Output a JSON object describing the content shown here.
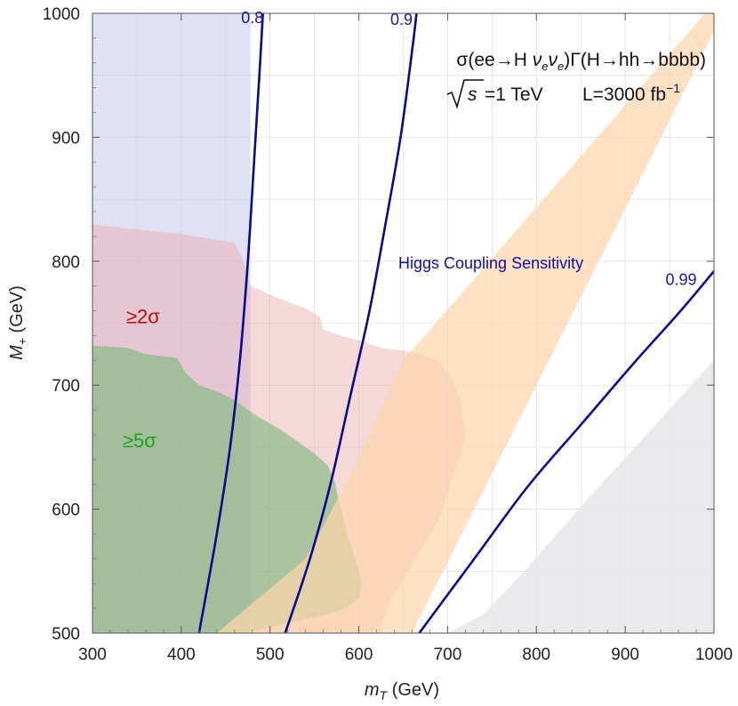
{
  "chart_data": {
    "type": "area",
    "title": "σ(ee→H νeνe)Γ(H→hh→bbbb)",
    "subtitle": "√s=1 TeV   L=3000 fb⁻¹",
    "title_parts": {
      "line1": [
        "σ(ee→H ",
        "ν",
        "e",
        "ν",
        "e",
        ")Γ(H→hh→bbbb)"
      ],
      "sqrt_s": "s",
      "energy": "=1 TeV",
      "lumi": "L=3000 fb",
      "lumi_exp": "−1"
    },
    "xlabel": "m_T (GeV)",
    "xlabel_parts": {
      "main": "m",
      "sub": "T",
      "unit": " (GeV)"
    },
    "ylabel": "M+ (GeV)",
    "ylabel_parts": {
      "main": "M",
      "sub": "+",
      "unit": " (GeV)"
    },
    "xlim": [
      300,
      1000
    ],
    "ylim": [
      500,
      1000
    ],
    "xticks": [
      300,
      400,
      500,
      600,
      700,
      800,
      900,
      1000
    ],
    "yticks": [
      500,
      600,
      700,
      800,
      900,
      1000
    ],
    "grid": true,
    "regions": [
      {
        "name": "low-mT-region",
        "color": "#c8c8ee",
        "opacity": 0.55,
        "points": [
          [
            300,
            1000
          ],
          [
            478,
            1000
          ],
          [
            478,
            500
          ],
          [
            300,
            500
          ]
        ]
      },
      {
        "name": "2-sigma-region",
        "color": "#e8a8a8",
        "opacity": 0.45,
        "label": "≥2σ",
        "label_color": "#b01010",
        "label_pos": [
          338,
          750
        ],
        "points": [
          [
            300,
            830
          ],
          [
            320,
            828
          ],
          [
            400,
            822
          ],
          [
            460,
            815
          ],
          [
            470,
            800
          ],
          [
            478,
            780
          ],
          [
            510,
            770
          ],
          [
            540,
            762
          ],
          [
            556,
            755
          ],
          [
            560,
            745
          ],
          [
            580,
            740
          ],
          [
            605,
            735
          ],
          [
            625,
            730
          ],
          [
            650,
            728
          ],
          [
            670,
            725
          ],
          [
            690,
            720
          ],
          [
            705,
            705
          ],
          [
            714,
            690
          ],
          [
            720,
            660
          ],
          [
            714,
            640
          ],
          [
            705,
            625
          ],
          [
            695,
            600
          ],
          [
            685,
            585
          ],
          [
            672,
            570
          ],
          [
            660,
            555
          ],
          [
            648,
            540
          ],
          [
            635,
            526
          ],
          [
            628,
            512
          ],
          [
            625,
            500
          ],
          [
            300,
            500
          ]
        ]
      },
      {
        "name": "5-sigma-region",
        "color": "#7ab87a",
        "opacity": 0.6,
        "label": "≥5σ",
        "label_color": "#20a020",
        "label_pos": [
          334,
          650
        ],
        "points": [
          [
            300,
            732
          ],
          [
            340,
            730
          ],
          [
            360,
            725
          ],
          [
            395,
            722
          ],
          [
            405,
            710
          ],
          [
            420,
            700
          ],
          [
            440,
            695
          ],
          [
            460,
            688
          ],
          [
            475,
            680
          ],
          [
            490,
            673
          ],
          [
            510,
            665
          ],
          [
            530,
            655
          ],
          [
            550,
            645
          ],
          [
            565,
            635
          ],
          [
            573,
            622
          ],
          [
            578,
            605
          ],
          [
            585,
            585
          ],
          [
            592,
            568
          ],
          [
            598,
            555
          ],
          [
            603,
            540
          ],
          [
            600,
            528
          ],
          [
            585,
            520
          ],
          [
            565,
            515
          ],
          [
            545,
            512
          ],
          [
            520,
            508
          ],
          [
            490,
            503
          ],
          [
            470,
            500
          ],
          [
            300,
            500
          ]
        ]
      },
      {
        "name": "orange-band",
        "color": "#ffd6ac",
        "opacity": 0.7,
        "points": [
          [
            440,
            500
          ],
          [
            660,
            500
          ],
          [
            1000,
            985
          ],
          [
            1000,
            1000
          ],
          [
            990,
            1000
          ],
          [
            650,
            720
          ],
          [
            600,
            640
          ],
          [
            540,
            560
          ]
        ]
      },
      {
        "name": "gray-excluded",
        "color": "#e6e6ea",
        "opacity": 0.85,
        "points": [
          [
            700,
            500
          ],
          [
            1000,
            500
          ],
          [
            1000,
            720
          ],
          [
            860,
            610
          ],
          [
            780,
            545
          ],
          [
            740,
            515
          ]
        ]
      }
    ],
    "contours": [
      {
        "name": "0.8",
        "label": "0.8",
        "color": "#0a0a8c",
        "points": [
          [
            420,
            500
          ],
          [
            440,
            580
          ],
          [
            455,
            650
          ],
          [
            466,
            720
          ],
          [
            475,
            800
          ],
          [
            482,
            880
          ],
          [
            488,
            950
          ],
          [
            492,
            1000
          ]
        ]
      },
      {
        "name": "0.9",
        "label": "0.9",
        "color": "#0a0a8c",
        "points": [
          [
            517,
            500
          ],
          [
            545,
            560
          ],
          [
            568,
            620
          ],
          [
            590,
            690
          ],
          [
            612,
            760
          ],
          [
            630,
            830
          ],
          [
            647,
            900
          ],
          [
            660,
            970
          ],
          [
            665,
            1000
          ]
        ]
      },
      {
        "name": "0.99",
        "label": "0.99",
        "color": "#0a0a8c",
        "points": [
          [
            668,
            500
          ],
          [
            730,
            560
          ],
          [
            790,
            618
          ],
          [
            850,
            668
          ],
          [
            910,
            718
          ],
          [
            960,
            758
          ],
          [
            1000,
            792
          ]
        ]
      }
    ],
    "annotation": "Higgs Coupling Sensitivity",
    "annotation_color": "#1010a0",
    "colors": {
      "background": "#ffffff",
      "frame": "#555555",
      "grid": "#d8d8d8",
      "line": "#0a0a8c"
    }
  }
}
